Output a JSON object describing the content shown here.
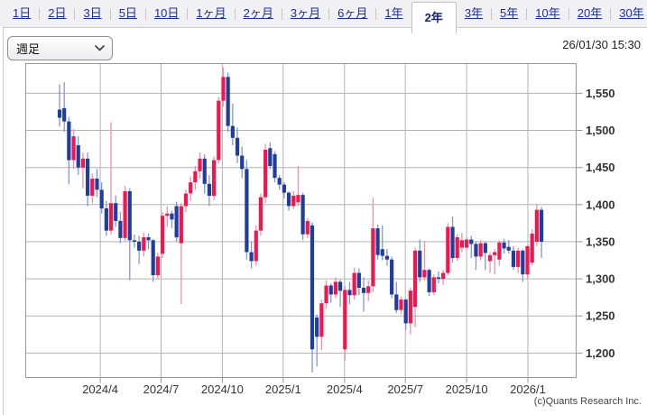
{
  "tabbar": {
    "tabs": [
      {
        "name": "1day",
        "label": "1日",
        "active": false
      },
      {
        "name": "2day",
        "label": "2日",
        "active": false
      },
      {
        "name": "3day",
        "label": "3日",
        "active": false
      },
      {
        "name": "5day",
        "label": "5日",
        "active": false
      },
      {
        "name": "10day",
        "label": "10日",
        "active": false
      },
      {
        "name": "1month",
        "label": "1ヶ月",
        "active": false
      },
      {
        "name": "2month",
        "label": "2ヶ月",
        "active": false
      },
      {
        "name": "3month",
        "label": "3ヶ月",
        "active": false
      },
      {
        "name": "6month",
        "label": "6ヶ月",
        "active": false
      },
      {
        "name": "1year",
        "label": "1年",
        "active": false
      },
      {
        "name": "2year",
        "label": "2年",
        "active": true
      },
      {
        "name": "3year",
        "label": "3年",
        "active": false
      },
      {
        "name": "5year",
        "label": "5年",
        "active": false
      },
      {
        "name": "10year",
        "label": "10年",
        "active": false
      },
      {
        "name": "20year",
        "label": "20年",
        "active": false
      },
      {
        "name": "30year",
        "label": "30年",
        "active": false
      }
    ]
  },
  "controls": {
    "timeframe_select": {
      "value": "週足"
    },
    "timestamp": "26/01/30 15:30"
  },
  "footer": {
    "copyright": "(c)Quants Research Inc."
  },
  "chart_data": {
    "type": "candlestick",
    "period": "weekly",
    "title": "",
    "ylabel": "",
    "xlabel": "",
    "grid": true,
    "ylim": [
      1167,
      1590
    ],
    "y_ticks": [
      1200,
      1250,
      1300,
      1350,
      1400,
      1450,
      1500,
      1550
    ],
    "x_ticks": [
      {
        "label": "2024/4",
        "week": 8.7
      },
      {
        "label": "2024/7",
        "week": 21.7
      },
      {
        "label": "2024/10",
        "week": 34.8
      },
      {
        "label": "2025/1",
        "week": 47.8
      },
      {
        "label": "2025/4",
        "week": 60.9
      },
      {
        "label": "2025/7",
        "week": 73.9
      },
      {
        "label": "2025/10",
        "week": 87.0
      },
      {
        "label": "2026/1",
        "week": 100.1
      }
    ],
    "colors": {
      "up_body": "#f2164e",
      "up_wick": "#f68fa6",
      "down_body": "#1e3da0",
      "down_wick": "#8495d6",
      "grid": "#b3b3b3",
      "border": "#979797",
      "axis_text": "#333333"
    },
    "candles_ohlc": [
      [
        1528,
        1562,
        1505,
        1517
      ],
      [
        1530,
        1565,
        1498,
        1512
      ],
      [
        1512,
        1518,
        1428,
        1460
      ],
      [
        1460,
        1502,
        1448,
        1492
      ],
      [
        1480,
        1492,
        1440,
        1450
      ],
      [
        1450,
        1470,
        1422,
        1462
      ],
      [
        1462,
        1470,
        1398,
        1412
      ],
      [
        1412,
        1442,
        1402,
        1435
      ],
      [
        1435,
        1448,
        1410,
        1420
      ],
      [
        1420,
        1430,
        1388,
        1395
      ],
      [
        1395,
        1405,
        1358,
        1365
      ],
      [
        1365,
        1511,
        1360,
        1402
      ],
      [
        1402,
        1412,
        1370,
        1378
      ],
      [
        1378,
        1390,
        1348,
        1355
      ],
      [
        1355,
        1425,
        1350,
        1418
      ],
      [
        1418,
        1422,
        1298,
        1352
      ],
      [
        1352,
        1360,
        1342,
        1350
      ],
      [
        1350,
        1358,
        1320,
        1338
      ],
      [
        1338,
        1362,
        1330,
        1356
      ],
      [
        1356,
        1361,
        1340,
        1352
      ],
      [
        1352,
        1354,
        1296,
        1305
      ],
      [
        1305,
        1335,
        1300,
        1330
      ],
      [
        1334,
        1390,
        1328,
        1385
      ],
      [
        1385,
        1398,
        1370,
        1388
      ],
      [
        1388,
        1392,
        1368,
        1380
      ],
      [
        1398,
        1404,
        1350,
        1356
      ],
      [
        1348,
        1402,
        1266,
        1398
      ],
      [
        1398,
        1420,
        1390,
        1415
      ],
      [
        1415,
        1438,
        1405,
        1430
      ],
      [
        1430,
        1452,
        1420,
        1445
      ],
      [
        1445,
        1470,
        1435,
        1462
      ],
      [
        1462,
        1468,
        1415,
        1428
      ],
      [
        1428,
        1440,
        1398,
        1412
      ],
      [
        1412,
        1465,
        1406,
        1460
      ],
      [
        1460,
        1545,
        1455,
        1540
      ],
      [
        1540,
        1585,
        1532,
        1572
      ],
      [
        1572,
        1578,
        1498,
        1506
      ],
      [
        1506,
        1536,
        1480,
        1490
      ],
      [
        1490,
        1504,
        1456,
        1466
      ],
      [
        1466,
        1478,
        1436,
        1448
      ],
      [
        1448,
        1460,
        1326,
        1336
      ],
      [
        1336,
        1350,
        1314,
        1324
      ],
      [
        1324,
        1372,
        1318,
        1365
      ],
      [
        1365,
        1415,
        1358,
        1410
      ],
      [
        1410,
        1482,
        1402,
        1474
      ],
      [
        1476,
        1484,
        1448,
        1452
      ],
      [
        1468,
        1472,
        1430,
        1436
      ],
      [
        1436,
        1440,
        1420,
        1427
      ],
      [
        1427,
        1430,
        1408,
        1416
      ],
      [
        1416,
        1418,
        1392,
        1398
      ],
      [
        1398,
        1418,
        1394,
        1412
      ],
      [
        1403,
        1452,
        1398,
        1413
      ],
      [
        1413,
        1416,
        1352,
        1360
      ],
      [
        1360,
        1382,
        1355,
        1378
      ],
      [
        1372,
        1376,
        1174,
        1205
      ],
      [
        1248,
        1252,
        1182,
        1222
      ],
      [
        1222,
        1272,
        1204,
        1267
      ],
      [
        1267,
        1298,
        1260,
        1291
      ],
      [
        1291,
        1294,
        1268,
        1279
      ],
      [
        1279,
        1302,
        1274,
        1296
      ],
      [
        1296,
        1299,
        1262,
        1284
      ],
      [
        1205,
        1290,
        1190,
        1285
      ],
      [
        1285,
        1296,
        1266,
        1278
      ],
      [
        1278,
        1315,
        1272,
        1308
      ],
      [
        1308,
        1314,
        1278,
        1288
      ],
      [
        1288,
        1302,
        1256,
        1281
      ],
      [
        1281,
        1298,
        1270,
        1290
      ],
      [
        1290,
        1409,
        1282,
        1368
      ],
      [
        1368,
        1373,
        1326,
        1332
      ],
      [
        1340,
        1372,
        1325,
        1331
      ],
      [
        1331,
        1340,
        1318,
        1326
      ],
      [
        1326,
        1330,
        1274,
        1279
      ],
      [
        1279,
        1296,
        1254,
        1258
      ],
      [
        1258,
        1276,
        1252,
        1272
      ],
      [
        1272,
        1274,
        1231,
        1240
      ],
      [
        1240,
        1288,
        1225,
        1284
      ],
      [
        1262,
        1342,
        1235,
        1338
      ],
      [
        1338,
        1353,
        1296,
        1302
      ],
      [
        1302,
        1351,
        1298,
        1312
      ],
      [
        1312,
        1314,
        1277,
        1282
      ],
      [
        1282,
        1306,
        1278,
        1302
      ],
      [
        1302,
        1310,
        1294,
        1300
      ],
      [
        1300,
        1312,
        1292,
        1308
      ],
      [
        1308,
        1375,
        1305,
        1370
      ],
      [
        1370,
        1384,
        1322,
        1328
      ],
      [
        1328,
        1360,
        1324,
        1356
      ],
      [
        1342,
        1362,
        1336,
        1352
      ],
      [
        1342,
        1356,
        1338,
        1353
      ],
      [
        1353,
        1358,
        1328,
        1347
      ],
      [
        1347,
        1350,
        1312,
        1330
      ],
      [
        1330,
        1352,
        1325,
        1348
      ],
      [
        1348,
        1350,
        1312,
        1335
      ],
      [
        1324,
        1336,
        1308,
        1332
      ],
      [
        1332,
        1340,
        1306,
        1336
      ],
      [
        1326,
        1352,
        1318,
        1349
      ],
      [
        1349,
        1354,
        1334,
        1341
      ],
      [
        1343,
        1352,
        1334,
        1338
      ],
      [
        1338,
        1344,
        1312,
        1316
      ],
      [
        1316,
        1342,
        1308,
        1338
      ],
      [
        1338,
        1340,
        1296,
        1306
      ],
      [
        1306,
        1346,
        1300,
        1344
      ],
      [
        1322,
        1367,
        1318,
        1361
      ],
      [
        1350,
        1401,
        1344,
        1393
      ],
      [
        1393,
        1397,
        1328,
        1350
      ]
    ]
  }
}
